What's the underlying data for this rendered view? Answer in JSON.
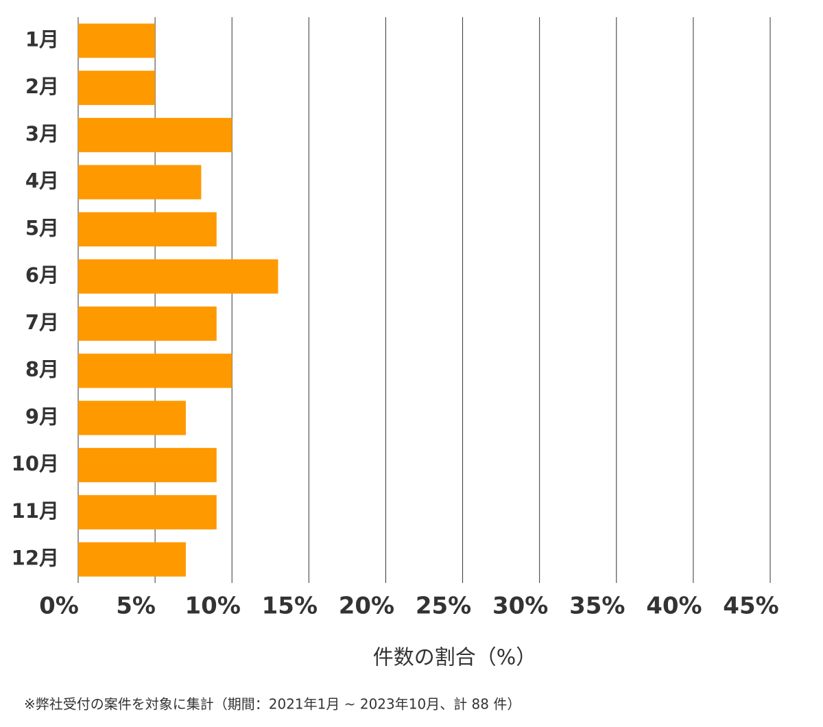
{
  "chart_data": {
    "type": "bar",
    "orientation": "horizontal",
    "categories": [
      "1月",
      "2月",
      "3月",
      "4月",
      "5月",
      "6月",
      "7月",
      "8月",
      "9月",
      "10月",
      "11月",
      "12月"
    ],
    "values": [
      5,
      5,
      10,
      8,
      9,
      13,
      9,
      10,
      7,
      9,
      9,
      7
    ],
    "color": "#ff9900",
    "xlim": [
      0,
      45
    ],
    "xticks": [
      {
        "value": 0,
        "label": "0%"
      },
      {
        "value": 5,
        "label": "5%"
      },
      {
        "value": 10,
        "label": "10%"
      },
      {
        "value": 15,
        "label": "15%"
      },
      {
        "value": 20,
        "label": "20%"
      },
      {
        "value": 25,
        "label": "25%"
      },
      {
        "value": 30,
        "label": "30%"
      },
      {
        "value": 35,
        "label": "35%"
      },
      {
        "value": 40,
        "label": "40%"
      },
      {
        "value": 45,
        "label": "45%"
      }
    ],
    "grid": true,
    "x_label": "件数の割合（%）",
    "footnote": "※弊社受付の案件を対象に集計（期間：2021年1月 ~ 2023年10月、計 88 件）"
  }
}
